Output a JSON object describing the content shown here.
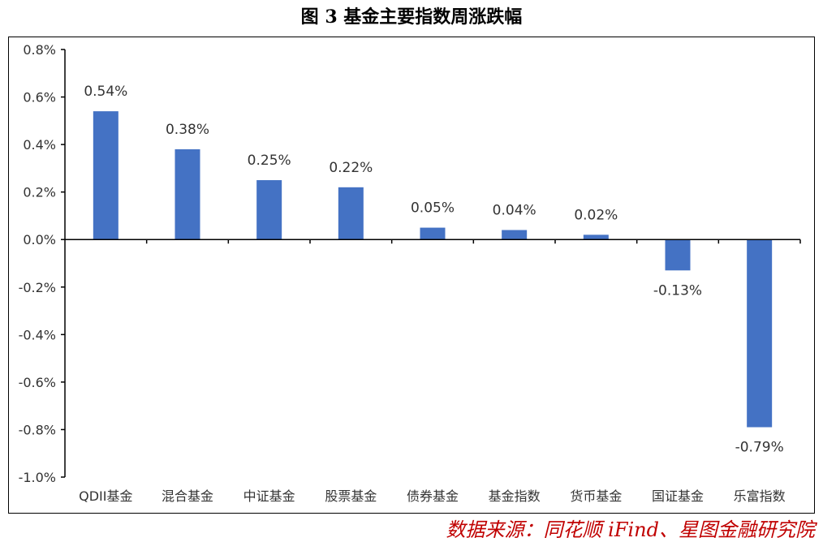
{
  "title": "图 3 基金主要指数周涨跌幅",
  "source": "数据来源：同花顺 iFind、星图金融研究院",
  "colors": {
    "bar": "#4472C4",
    "axis": "#000000",
    "text": "#333333",
    "source": "#c00000"
  },
  "chart_data": {
    "type": "bar",
    "title": "图 3 基金主要指数周涨跌幅",
    "xlabel": "",
    "ylabel": "",
    "ylim": [
      -1.0,
      0.8
    ],
    "grid": false,
    "legend": "none",
    "y_ticks": [
      "0.8%",
      "0.6%",
      "0.4%",
      "0.2%",
      "0.0%",
      "-0.2%",
      "-0.4%",
      "-0.6%",
      "-0.8%",
      "-1.0%"
    ],
    "y_tick_values": [
      0.8,
      0.6,
      0.4,
      0.2,
      0.0,
      -0.2,
      -0.4,
      -0.6,
      -0.8,
      -1.0
    ],
    "categories": [
      "QDII基金",
      "混合基金",
      "中证基金",
      "股票基金",
      "债券基金",
      "基金指数",
      "货币基金",
      "国证基金",
      "乐富指数"
    ],
    "values": [
      0.54,
      0.38,
      0.25,
      0.22,
      0.05,
      0.04,
      0.02,
      -0.13,
      -0.79
    ],
    "value_labels": [
      "0.54%",
      "0.38%",
      "0.25%",
      "0.22%",
      "0.05%",
      "0.04%",
      "0.02%",
      "-0.13%",
      "-0.79%"
    ]
  }
}
